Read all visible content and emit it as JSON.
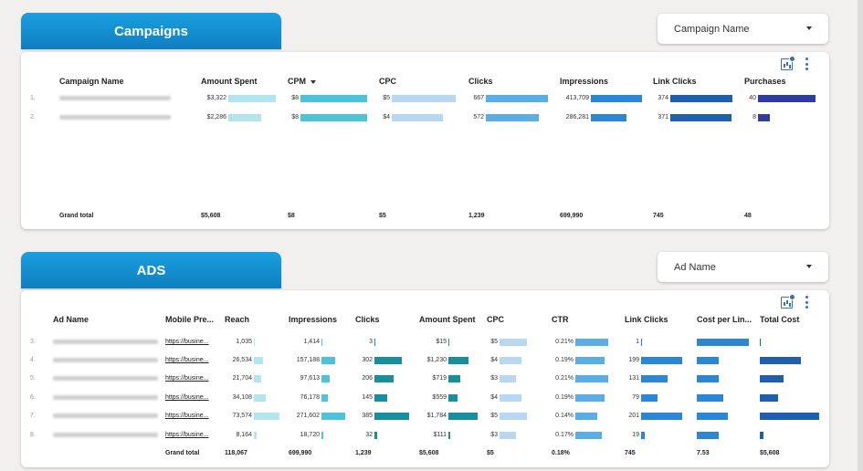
{
  "campaigns": {
    "tab_title": "Campaigns",
    "filter_label": "Campaign Name",
    "headers": [
      "Campaign Name",
      "Amount Spent",
      "CPM",
      "CPC",
      "Clicks",
      "Impressions",
      "Link Clicks",
      "Purchases"
    ],
    "rows": [
      {
        "index": "1.",
        "name": "100016 04 Jom Per $8 322A 18 Only",
        "amount": "$3,322",
        "cpm": "$8",
        "cpc": "$5",
        "clicks": "667",
        "impressions": "413,709",
        "link_clicks": "374",
        "purchases": "40"
      },
      {
        "index": "2.",
        "name": "100016 PS Jom Per $8 322A 18 Only",
        "amount": "$2,286",
        "cpm": "$8",
        "cpc": "$4",
        "clicks": "572",
        "impressions": "286,281",
        "link_clicks": "371",
        "purchases": "8"
      }
    ],
    "bar_fractions": [
      {
        "amount": 1.0,
        "cpm": 1.0,
        "cpc": 1.0,
        "clicks": 1.0,
        "impressions": 1.0,
        "link_clicks": 1.0,
        "purchases": 1.0
      },
      {
        "amount": 0.69,
        "cpm": 1.0,
        "cpc": 0.8,
        "clicks": 0.86,
        "impressions": 0.69,
        "link_clicks": 0.99,
        "purchases": 0.2
      }
    ],
    "totals": {
      "label": "Grand total",
      "amount": "$5,608",
      "cpm": "$8",
      "cpc": "$5",
      "clicks": "1,239",
      "impressions": "699,990",
      "link_clicks": "745",
      "purchases": "48"
    }
  },
  "ads": {
    "tab_title": "ADS",
    "filter_label": "Ad Name",
    "headers": [
      "Ad Name",
      "Mobile Pre...",
      "Reach",
      "Impressions",
      "Clicks",
      "Amount Spent",
      "CPC",
      "CTR",
      "Link Clicks",
      "Cost per Lin...",
      "Total Cost"
    ],
    "rows": [
      {
        "index": "3.",
        "name": "100016 04 Jom Per $8 322A 18 Only",
        "link": "https://busine...",
        "reach": "1,035",
        "impressions": "1,414",
        "clicks": "3",
        "amount": "$15",
        "cpc": "$5",
        "ctr": "0.21%",
        "link_clicks": "1"
      },
      {
        "index": "4.",
        "name": "100016 PS (2) 70 $8 322A 18 Only",
        "link": "https://busine...",
        "reach": "26,534",
        "impressions": "157,188",
        "clicks": "302",
        "amount": "$1,230",
        "cpc": "$4",
        "ctr": "0.19%",
        "link_clicks": "199"
      },
      {
        "index": "5.",
        "name": "100016 PS (2) 70 $8 322A 18 Only",
        "link": "https://busine...",
        "reach": "21,704",
        "impressions": "97,613",
        "clicks": "206",
        "amount": "$719",
        "cpc": "$3",
        "ctr": "0.21%",
        "link_clicks": "131"
      },
      {
        "index": "6.",
        "name": "100016 04 Jom Per $8 322A 18 Only",
        "link": "https://busine...",
        "reach": "34,108",
        "impressions": "76,178",
        "clicks": "145",
        "amount": "$559",
        "cpc": "$4",
        "ctr": "0.19%",
        "link_clicks": "79"
      },
      {
        "index": "7.",
        "name": "100016 04 Jom (2) Per $8 322A 18 Only",
        "link": "https://busine...",
        "reach": "73,574",
        "impressions": "271,602",
        "clicks": "385",
        "amount": "$1,784",
        "cpc": "$5",
        "ctr": "0.14%",
        "link_clicks": "201"
      },
      {
        "index": "8.",
        "name": "100016 04 Jom (2) $8 322A 18 Only",
        "link": "https://busine...",
        "reach": "8,164",
        "impressions": "18,720",
        "clicks": "32",
        "amount": "$111",
        "cpc": "$3",
        "ctr": "0.17%",
        "link_clicks": "19"
      }
    ],
    "bar_fractions": [
      {
        "reach": 0.01,
        "impressions": 0.01,
        "clicks": 0.01,
        "amount": 0.01,
        "cpc": 1.0,
        "ctr": 1.0,
        "link_clicks": 0.01,
        "cost_per_link": 1.0,
        "total_cost": 0.01
      },
      {
        "reach": 0.36,
        "impressions": 0.58,
        "clicks": 0.78,
        "amount": 0.69,
        "cpc": 0.8,
        "ctr": 0.9,
        "link_clicks": 1.0,
        "cost_per_link": 0.42,
        "total_cost": 0.69
      },
      {
        "reach": 0.3,
        "impressions": 0.36,
        "clicks": 0.54,
        "amount": 0.4,
        "cpc": 0.6,
        "ctr": 1.0,
        "link_clicks": 0.65,
        "cost_per_link": 0.42,
        "total_cost": 0.4
      },
      {
        "reach": 0.46,
        "impressions": 0.28,
        "clicks": 0.38,
        "amount": 0.31,
        "cpc": 0.8,
        "ctr": 0.9,
        "link_clicks": 0.39,
        "cost_per_link": 0.5,
        "total_cost": 0.31
      },
      {
        "reach": 1.0,
        "impressions": 1.0,
        "clicks": 1.0,
        "amount": 1.0,
        "cpc": 1.0,
        "ctr": 0.67,
        "link_clicks": 1.0,
        "cost_per_link": 0.6,
        "total_cost": 1.0
      },
      {
        "reach": 0.11,
        "impressions": 0.07,
        "clicks": 0.08,
        "amount": 0.06,
        "cpc": 0.6,
        "ctr": 0.81,
        "link_clicks": 0.09,
        "cost_per_link": 0.42,
        "total_cost": 0.06
      }
    ],
    "totals": {
      "label": "Grand total",
      "reach": "118,067",
      "impressions": "699,990",
      "clicks": "1,239",
      "amount": "$5,608",
      "cpc": "$5",
      "ctr": "0.18%",
      "link_clicks": "745",
      "cost_per_link": "7.53",
      "total_cost": "$5,608"
    }
  },
  "colors": {
    "tab_blue": "#1a9fe0",
    "bar_light_cyan": "#b3e5ef",
    "bar_cyan": "#4cc3d9",
    "bar_pale_blue": "#b8d8f2",
    "bar_mid_blue": "#5aaee6",
    "bar_blue": "#2b86d6",
    "bar_dark_blue": "#1f5fad",
    "bar_indigo": "#2f3aa3",
    "bar_teal": "#178f9c",
    "icon_blue": "#3a6fb0"
  },
  "icons": [
    "chart-settings-icon",
    "more-vert-icon",
    "dropdown-caret-icon"
  ]
}
